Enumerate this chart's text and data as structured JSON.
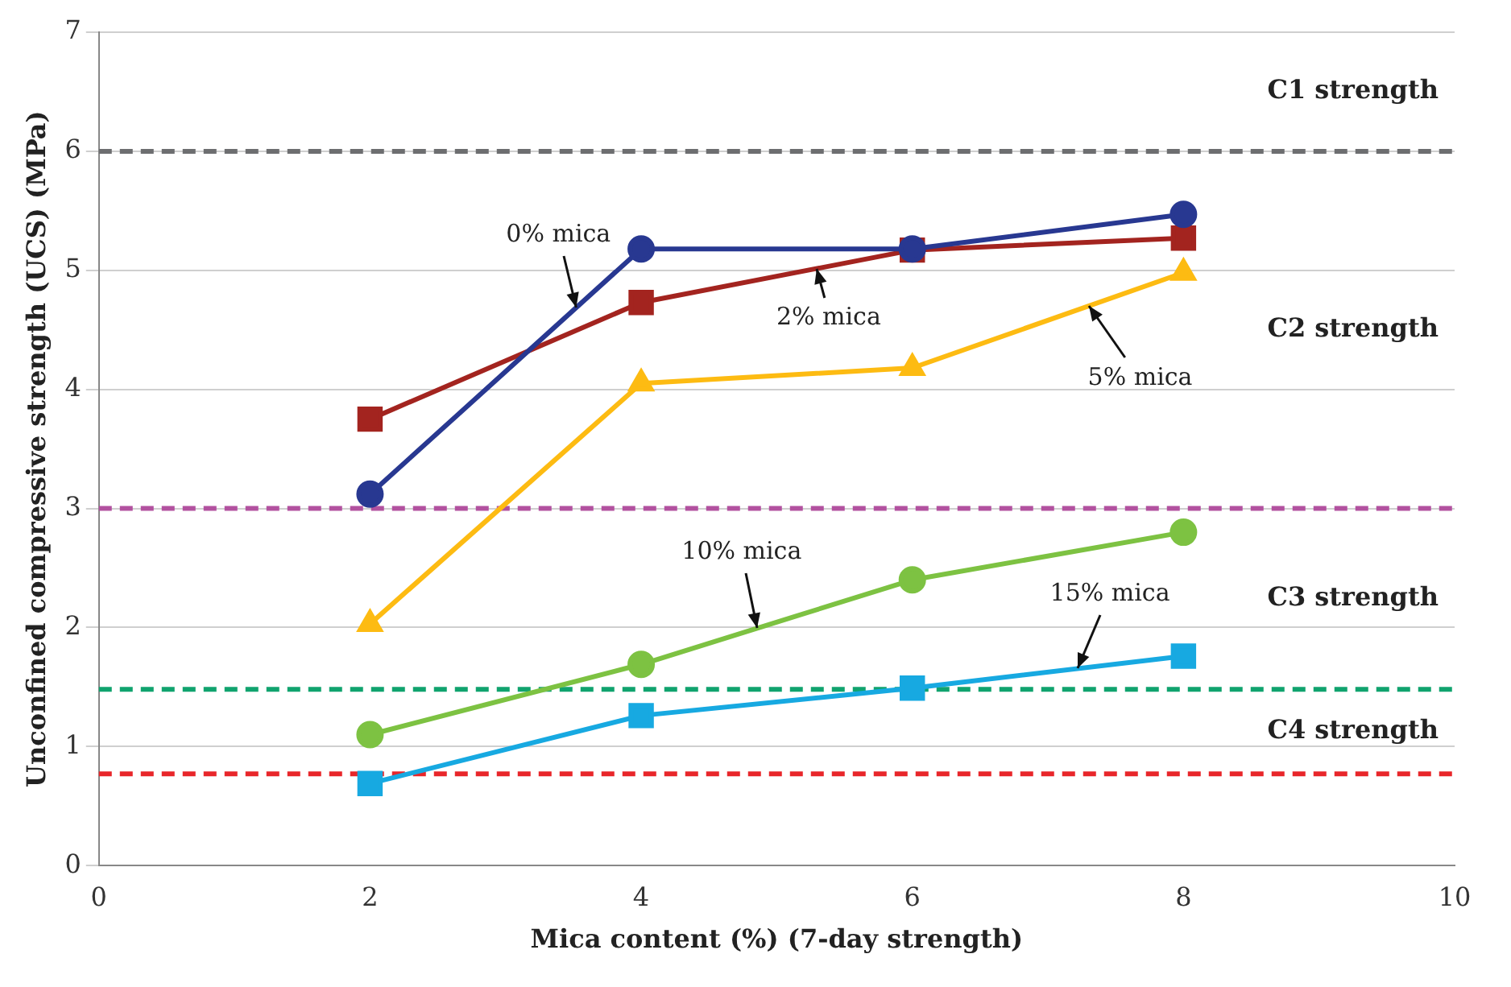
{
  "chart_data": {
    "type": "line",
    "xlabel": "Mica content (%) (7-day strength)",
    "ylabel": "Unconfined compressive strength (UCS) (MPa)",
    "x": [
      2,
      4,
      6,
      8
    ],
    "xlim": [
      0,
      10
    ],
    "xticks": [
      0,
      2,
      4,
      6,
      8,
      10
    ],
    "ylim": [
      0,
      7
    ],
    "yticks": [
      0,
      1,
      2,
      3,
      4,
      5,
      6,
      7
    ],
    "grid": "y",
    "legend": false,
    "line_style": "solid",
    "series": [
      {
        "name": "0% mica",
        "color": "#283891",
        "marker": "circle",
        "values": [
          3.12,
          5.18,
          5.18,
          5.47
        ]
      },
      {
        "name": "2% mica",
        "color": "#a3241f",
        "marker": "square",
        "values": [
          3.75,
          4.73,
          5.17,
          5.27
        ]
      },
      {
        "name": "5% mica",
        "color": "#fdbb12",
        "marker": "triangle",
        "values": [
          2.03,
          4.05,
          4.18,
          4.98
        ]
      },
      {
        "name": "10% mica",
        "color": "#7dc242",
        "marker": "circle",
        "values": [
          1.1,
          1.69,
          2.4,
          2.8
        ]
      },
      {
        "name": "15% mica",
        "color": "#17a9e1",
        "marker": "square",
        "values": [
          0.69,
          1.26,
          1.49,
          1.76
        ]
      }
    ],
    "ref_lines": [
      {
        "axis": "y",
        "value": 6,
        "color": "#6d6e70",
        "line_style": "dashed"
      },
      {
        "axis": "y",
        "value": 3,
        "color": "#b2519f",
        "line_style": "dashed"
      },
      {
        "axis": "y",
        "value": 1.48,
        "color": "#10a36e",
        "line_style": "dashed"
      },
      {
        "axis": "y",
        "value": 0.77,
        "color": "#e8262a",
        "line_style": "dashed"
      }
    ],
    "annotations": [
      "C1 strength",
      "C2 strength",
      "C3 strength",
      "C4 strength"
    ]
  }
}
